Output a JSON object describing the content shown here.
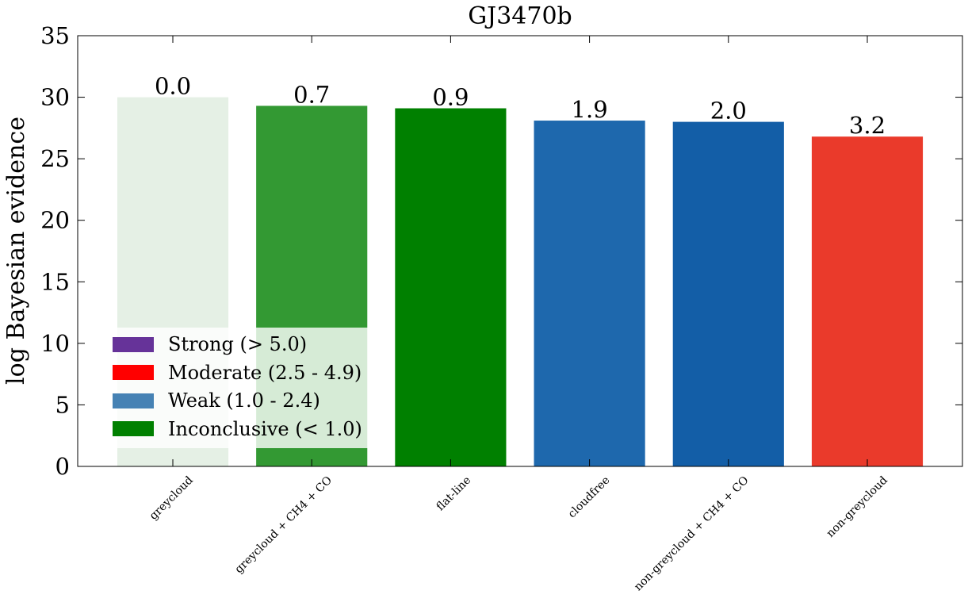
{
  "chart_data": {
    "type": "bar",
    "title": "GJ3470b",
    "xlabel": "",
    "ylabel": "log Bayesian evidence",
    "ylim": [
      0,
      35
    ],
    "yticks": [
      0,
      5,
      10,
      15,
      20,
      25,
      30,
      35
    ],
    "categories": [
      "greycloud",
      "greycloud + CH4 + CO",
      "flat-line",
      "cloudfree",
      "non-greycloud + CH4 + CO",
      "non-greycloud"
    ],
    "values": [
      30.0,
      29.3,
      29.1,
      28.1,
      28.0,
      26.8
    ],
    "bar_labels": [
      "0.0",
      "0.7",
      "0.9",
      "1.9",
      "2.0",
      "3.2"
    ],
    "bar_colors": [
      "#e5f0e5",
      "#339933",
      "#008000",
      "#1e68ad",
      "#135ea7",
      "#ea3a2b"
    ],
    "grid": false,
    "legend": {
      "placement": "lower-left",
      "entries": [
        {
          "label": "Strong (> 5.0)",
          "color": "#663399"
        },
        {
          "label": "Moderate (2.5 - 4.9)",
          "color": "#ff0000"
        },
        {
          "label": "Weak (1.0 - 2.4)",
          "color": "#4682b4"
        },
        {
          "label": "Inconclusive (< 1.0)",
          "color": "#008000"
        }
      ]
    }
  }
}
